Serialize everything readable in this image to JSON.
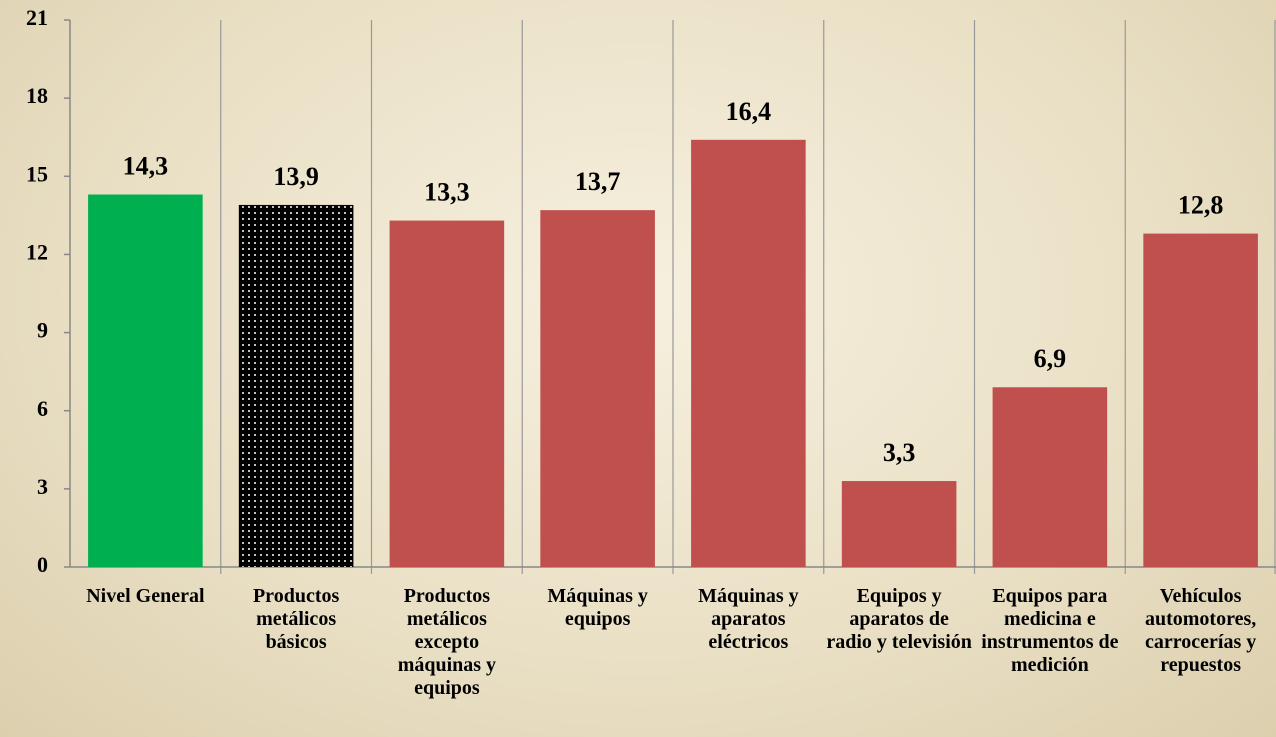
{
  "chart_data": {
    "type": "bar",
    "categories": [
      "Nivel General",
      "Productos metálicos básicos",
      "Productos metálicos excepto máquinas y equipos",
      "Máquinas y equipos",
      "Máquinas y aparatos eléctricos",
      "Equipos y aparatos de radio y televisión",
      "Equipos para medicina e instrumentos de medición",
      "Vehículos automotores, carrocerías y repuestos"
    ],
    "values": [
      14.3,
      13.9,
      13.3,
      13.7,
      16.4,
      3.3,
      6.9,
      12.8
    ],
    "value_labels": [
      "14,3",
      "13,9",
      "13,3",
      "13,7",
      "16,4",
      "3,3",
      "6,9",
      "12,8"
    ],
    "colors": [
      "#00b050",
      "#000000",
      "#c0504d",
      "#c0504d",
      "#c0504d",
      "#c0504d",
      "#c0504d",
      "#c0504d"
    ],
    "patterns": [
      null,
      "dots",
      null,
      null,
      null,
      null,
      null,
      null
    ],
    "ylim": [
      0,
      21
    ],
    "yticks": [
      0,
      3,
      6,
      9,
      12,
      15,
      18,
      21
    ],
    "grid": true
  }
}
